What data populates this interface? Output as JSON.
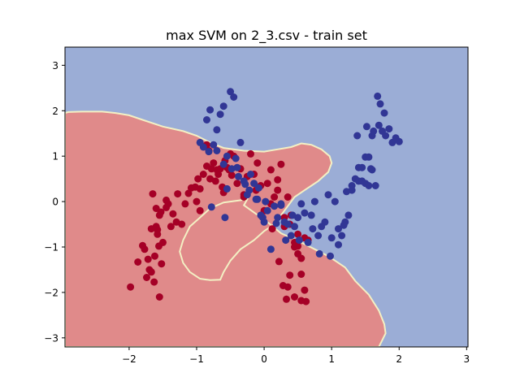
{
  "chart_data": {
    "type": "scatter",
    "title": "max SVM on 2_3.csv - train set",
    "xlabel": "",
    "ylabel": "",
    "xlim": [
      -2.95,
      3.02
    ],
    "ylim": [
      -3.2,
      3.4
    ],
    "xticks": [
      -2,
      -1,
      0,
      1,
      2,
      3
    ],
    "yticks": [
      -3,
      -2,
      -1,
      0,
      1,
      2,
      3
    ],
    "grid": false,
    "legend": "none",
    "colors": {
      "class_0_region": "#e08a8a",
      "class_1_region": "#9badd6",
      "boundary": "#f3f0c4",
      "class_0_point": "#a50026",
      "class_1_point": "#313695",
      "axes": "#000000"
    },
    "decision_region_class0": [
      [
        -2.95,
        1.95
      ],
      [
        -2.9,
        1.97
      ],
      [
        -2.7,
        1.98
      ],
      [
        -2.4,
        1.98
      ],
      [
        -2.2,
        1.95
      ],
      [
        -2.0,
        1.9
      ],
      [
        -1.8,
        1.8
      ],
      [
        -1.5,
        1.65
      ],
      [
        -1.2,
        1.55
      ],
      [
        -1.0,
        1.45
      ],
      [
        -0.8,
        1.3
      ],
      [
        -0.6,
        1.18
      ],
      [
        -0.3,
        1.12
      ],
      [
        0.0,
        1.1
      ],
      [
        0.2,
        1.15
      ],
      [
        0.4,
        1.2
      ],
      [
        0.55,
        1.28
      ],
      [
        0.7,
        1.25
      ],
      [
        0.85,
        1.15
      ],
      [
        0.97,
        1.0
      ],
      [
        1.0,
        0.85
      ],
      [
        0.95,
        0.65
      ],
      [
        0.8,
        0.45
      ],
      [
        0.6,
        0.25
      ],
      [
        0.45,
        0.1
      ],
      [
        0.35,
        -0.1
      ],
      [
        0.25,
        -0.3
      ],
      [
        0.15,
        -0.5
      ],
      [
        0.0,
        -0.65
      ],
      [
        -0.15,
        -0.85
      ],
      [
        -0.35,
        -1.05
      ],
      [
        -0.5,
        -1.3
      ],
      [
        -0.6,
        -1.55
      ],
      [
        -0.65,
        -1.72
      ],
      [
        -0.8,
        -1.73
      ],
      [
        -0.95,
        -1.7
      ],
      [
        -1.1,
        -1.55
      ],
      [
        -1.2,
        -1.35
      ],
      [
        -1.25,
        -1.1
      ],
      [
        -1.2,
        -0.85
      ],
      [
        -1.1,
        -0.55
      ],
      [
        -0.95,
        -0.35
      ],
      [
        -0.8,
        -0.15
      ],
      [
        -0.6,
        -0.02
      ],
      [
        -0.4,
        0.02
      ],
      [
        -0.25,
        0.05
      ],
      [
        -0.3,
        -0.08
      ],
      [
        0.05,
        -0.45
      ],
      [
        0.25,
        -0.7
      ],
      [
        0.55,
        -0.9
      ],
      [
        0.75,
        -1.05
      ],
      [
        0.95,
        -1.2
      ],
      [
        1.1,
        -1.35
      ],
      [
        1.2,
        -1.45
      ],
      [
        1.35,
        -1.75
      ],
      [
        1.55,
        -2.05
      ],
      [
        1.7,
        -2.4
      ],
      [
        1.78,
        -2.7
      ],
      [
        1.8,
        -2.9
      ],
      [
        1.75,
        -3.05
      ],
      [
        1.7,
        -3.2
      ],
      [
        -2.95,
        -3.2
      ]
    ],
    "series": [
      {
        "class": 0,
        "x": [
          -1.98,
          -1.87,
          -1.8,
          -1.77,
          -1.72,
          -1.74,
          -1.7,
          -1.67,
          -1.63,
          -1.62,
          -1.6,
          -1.58,
          -1.55,
          -1.52,
          -1.56,
          -1.53,
          -1.6,
          -1.67,
          -1.65,
          -1.58,
          -1.55,
          -1.5,
          -1.45,
          -1.42,
          -1.38,
          -1.35,
          -1.3,
          -1.28,
          -1.22,
          -1.17,
          -1.12,
          -1.08,
          -1.02,
          -1.0,
          -0.98,
          -0.95,
          -0.9,
          -0.85,
          -0.82,
          -0.78,
          -0.75,
          -0.72,
          -0.68,
          -0.62,
          -0.6,
          -0.58,
          -0.55,
          -0.52,
          -0.48,
          -0.45,
          -0.4,
          -0.35,
          -0.3,
          -0.25,
          -0.2,
          -0.15,
          -0.12,
          -0.1,
          -0.05,
          0.0,
          0.05,
          0.1,
          0.15,
          0.2,
          0.25,
          0.3,
          0.35,
          0.38,
          0.4,
          0.45,
          0.5,
          0.55,
          0.6,
          -0.85,
          -0.7,
          -0.3,
          0.1,
          0.2,
          0.3,
          0.45,
          0.5,
          0.55,
          0.65,
          -0.5,
          -0.8,
          -1.45,
          -0.95,
          -0.65,
          0.22,
          0.12,
          0.28
        ],
        "y": [
          -1.88,
          -1.33,
          -0.97,
          -1.05,
          -1.27,
          -1.67,
          -1.5,
          -1.55,
          -1.77,
          -1.2,
          -0.55,
          -0.62,
          -2.1,
          -1.37,
          -0.98,
          -0.23,
          -0.15,
          -0.6,
          0.17,
          -0.72,
          -0.3,
          -0.9,
          -0.13,
          -0.05,
          -0.55,
          -0.27,
          -0.45,
          0.17,
          -0.5,
          -0.05,
          0.18,
          0.3,
          0.32,
          0.0,
          0.5,
          -0.2,
          0.6,
          0.78,
          1.12,
          0.72,
          0.85,
          0.45,
          0.6,
          0.32,
          0.2,
          0.9,
          0.75,
          0.7,
          0.58,
          1.0,
          0.4,
          0.72,
          0.15,
          0.55,
          1.05,
          0.6,
          0.25,
          0.85,
          0.35,
          -0.2,
          0.4,
          0.7,
          0.1,
          0.48,
          0.82,
          -0.35,
          0.1,
          -0.5,
          -0.3,
          -0.9,
          -0.72,
          -1.25,
          -0.8,
          1.25,
          0.7,
          0.1,
          -0.05,
          0.25,
          -0.55,
          -1.0,
          -1.15,
          -1.6,
          -0.85,
          1.05,
          0.5,
          0.03,
          0.28,
          0.72,
          -1.32,
          -0.6,
          -1.85
        ],
        "extra_x": [
          0.55,
          0.62,
          0.35,
          0.45,
          0.38,
          0.6,
          0.33,
          0.5
        ],
        "extra_y": [
          -2.18,
          -2.2,
          -1.88,
          -2.1,
          -1.62,
          -1.95,
          -2.15,
          -0.98
        ]
      },
      {
        "class": 1,
        "x": [
          -0.35,
          -0.4,
          -0.3,
          -0.22,
          -0.15,
          -0.1,
          -0.05,
          0.0,
          0.05,
          0.1,
          0.15,
          0.2,
          0.25,
          0.3,
          0.35,
          0.4,
          0.45,
          0.5,
          0.55,
          0.6,
          0.65,
          0.7,
          0.75,
          0.8,
          0.85,
          0.9,
          0.95,
          1.0,
          1.05,
          1.1,
          1.15,
          1.2,
          1.25,
          1.3,
          1.35,
          1.4,
          1.45,
          1.5,
          1.55,
          1.6,
          1.65,
          1.7,
          1.75,
          1.8,
          1.85,
          1.9,
          1.95,
          2.0,
          1.38,
          1.45,
          1.52,
          1.6,
          1.68,
          1.58,
          1.62,
          1.72,
          1.78,
          1.5,
          1.55,
          1.4,
          1.3,
          1.22,
          1.18,
          1.1,
          0.98,
          -0.5,
          -0.45,
          -0.6,
          -0.65,
          -0.7,
          -0.8,
          -0.85,
          -0.95,
          -0.75,
          -0.7,
          -0.82,
          -0.55,
          -0.6,
          -0.48,
          -0.42,
          -0.38,
          -0.2,
          -0.25,
          -0.12,
          -0.08,
          0.02,
          0.18,
          0.32,
          0.42,
          0.52,
          0.72,
          0.82,
          -0.58,
          -0.55,
          -0.78,
          -0.9,
          0.25,
          -0.28,
          -0.02
        ],
        "y": [
          1.3,
          0.75,
          0.45,
          0.25,
          0.4,
          0.05,
          -0.3,
          -0.45,
          -0.2,
          -1.05,
          -0.1,
          -0.35,
          -0.05,
          -0.45,
          -0.5,
          -0.75,
          -0.55,
          -0.35,
          -0.05,
          -0.25,
          -0.9,
          -0.3,
          0.0,
          -0.75,
          -0.55,
          -0.45,
          0.15,
          -0.8,
          0.0,
          -0.6,
          -0.75,
          -0.45,
          -0.3,
          0.25,
          0.5,
          0.45,
          0.45,
          0.4,
          0.35,
          0.7,
          0.35,
          1.68,
          1.55,
          1.45,
          1.6,
          1.3,
          1.4,
          1.32,
          1.45,
          0.75,
          1.65,
          1.45,
          2.32,
          0.72,
          1.55,
          2.15,
          1.95,
          0.98,
          0.98,
          0.75,
          0.35,
          0.22,
          -0.52,
          -0.95,
          -1.2,
          2.42,
          2.3,
          2.1,
          1.92,
          1.58,
          2.02,
          1.8,
          1.3,
          1.25,
          1.12,
          1.1,
          1.0,
          0.82,
          0.72,
          0.95,
          0.55,
          0.6,
          0.15,
          0.05,
          0.3,
          0.0,
          -0.48,
          -0.85,
          -0.3,
          -0.85,
          -0.6,
          -1.15,
          -0.35,
          0.28,
          -0.12,
          1.2,
          -0.08,
          0.38,
          -0.35
        ]
      }
    ]
  }
}
